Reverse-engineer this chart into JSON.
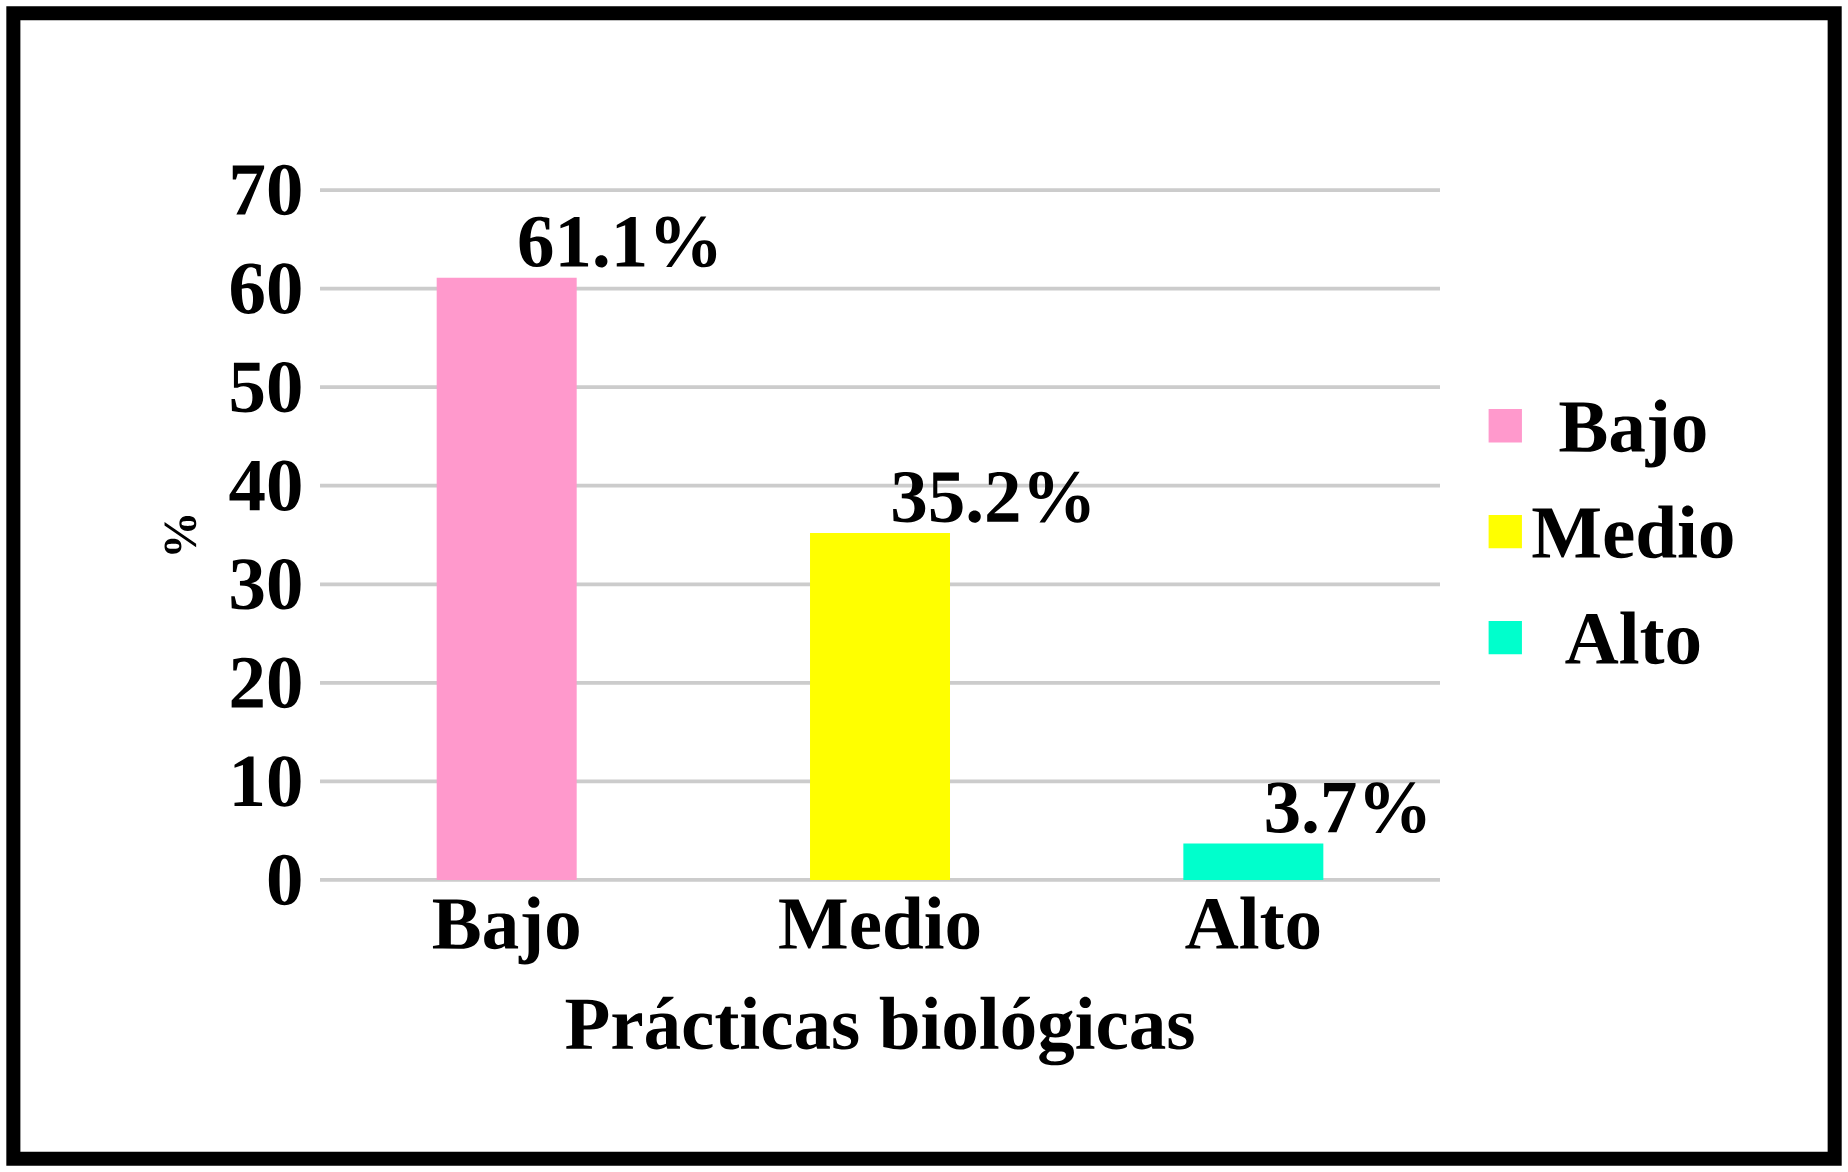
{
  "chart_data": {
    "type": "bar",
    "xlabel": "Prácticas biológicas",
    "ylabel": "%",
    "categories": [
      "Bajo",
      "Medio",
      "Alto"
    ],
    "series": [
      {
        "name": "Bajo",
        "color": "#ff99cc",
        "values": [
          61.1,
          null,
          null
        ],
        "value_labels": [
          "61.1%",
          null,
          null
        ]
      },
      {
        "name": "Medio",
        "color": "#ffff00",
        "values": [
          null,
          35.2,
          null
        ],
        "value_labels": [
          null,
          "35.2%",
          null
        ]
      },
      {
        "name": "Alto",
        "color": "#00ffcc",
        "values": [
          null,
          null,
          3.7
        ],
        "value_labels": [
          null,
          null,
          "3.7%"
        ]
      }
    ],
    "ylim": [
      0,
      70
    ],
    "yticks": [
      0,
      10,
      20,
      30,
      40,
      50,
      60,
      70
    ],
    "grid": "y",
    "legend": "right"
  }
}
